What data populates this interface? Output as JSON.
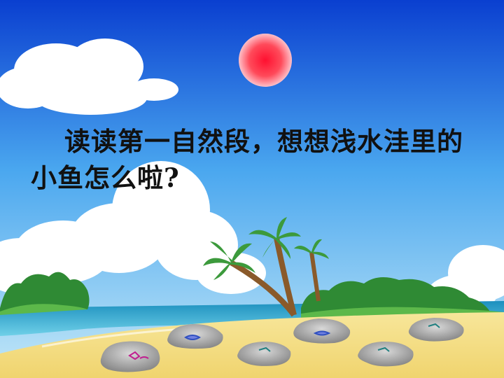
{
  "slide": {
    "text": "读读第一自然段，想想浅水洼里的小鱼怎么啦?"
  },
  "colors": {
    "sky_top": "#0a3fd0",
    "sky_bottom": "#bfe6f7",
    "sun": "#f2283a",
    "sea": "#1fa6c8",
    "sand": "#f4e08a",
    "foliage": "#3c9a3c",
    "stone": "#a9a9a9"
  },
  "icons": [
    "sun",
    "cloud",
    "palm-tree",
    "bush",
    "stone",
    "fish"
  ]
}
